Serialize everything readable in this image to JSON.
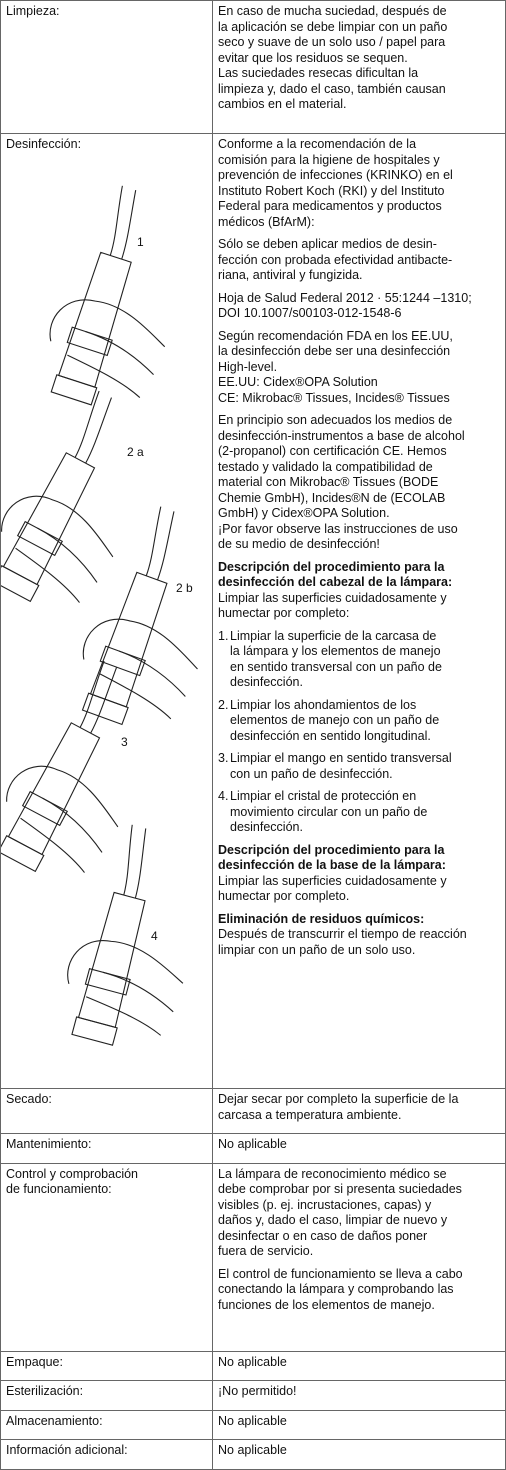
{
  "table": {
    "rows": [
      {
        "label": "Limpieza:",
        "blocks": [
          {
            "lines": [
              "En caso de mucha suciedad, después de",
              "la aplicación se debe limpiar con un paño",
              "seco y suave de un solo uso / papel para",
              "evitar que los residuos se sequen.",
              "Las suciedades resecas dificultan la",
              "limpieza y, dado el caso, también causan",
              "cambios en el material."
            ]
          }
        ]
      },
      {
        "label": "Desinfección:",
        "figures": [
          "1",
          "2 a",
          "2 b",
          "3",
          "4"
        ],
        "blocks": [
          {
            "lines": [
              "Conforme a la recomendación de la",
              "comisión para la higiene de hospitales y",
              "prevención de infecciones (KRINKO) en el",
              "Instituto Robert Koch (RKI) y del Instituto",
              "Federal para medicamentos y productos",
              "médicos (BfArM):"
            ]
          },
          {
            "lines": [
              "Sólo se deben aplicar medios de desin-",
              "fección con probada efectividad antibacte-",
              "riana, antiviral y fungizida."
            ]
          },
          {
            "lines": [
              "Hoja de Salud Federal 2012 · 55:1244 –1310;",
              "DOI 10.1007/s00103-012-1548-6"
            ]
          },
          {
            "lines": [
              "Según recomendación FDA en los EE.UU,",
              "la desinfección debe ser una desinfección",
              "High-level.",
              "EE.UU: Cidex®OPA Solution",
              "CE: Mikrobac® Tissues, Incides® Tissues"
            ]
          },
          {
            "lines": [
              "En principio son adecuados los medios de",
              "desinfección-instrumentos a base de alcohol",
              "(2-propanol) con certificación CE. Hemos",
              "testado y validado la compatibilidad de",
              "material con Mikrobac® Tissues (BODE",
              "Chemie GmbH), Incides®N de (ECOLAB",
              "GmbH) y Cidex®OPA Solution.",
              "¡Por favor observe las instrucciones de uso",
              "de su medio de desinfección!"
            ]
          },
          {
            "heading": [
              "Descripción del procedimiento para la",
              "desinfección del cabezal de la lámpara:"
            ],
            "lines": [
              "Limpiar las superficies cuidadosamente y",
              "humectar por completo:"
            ]
          },
          {
            "marker": "1.",
            "lines": [
              "Limpiar la superficie de la carcasa de",
              "la lámpara y los elementos de manejo",
              "en sentido transversal con un paño de",
              "desinfección."
            ]
          },
          {
            "marker": "2.",
            "lines": [
              "Limpiar los ahondamientos de los",
              "elementos de manejo con un paño de",
              "desinfección en sentido longitudinal."
            ]
          },
          {
            "marker": "3.",
            "lines": [
              "Limpiar el mango en sentido transversal",
              "con un paño de desinfección."
            ]
          },
          {
            "marker": "4.",
            "lines": [
              "Limpiar el cristal de protección en",
              "movimiento circular con un paño de",
              "desinfección."
            ]
          },
          {
            "heading": [
              "Descripción del procedimiento para la",
              "desinfección de la base de la lámpara:"
            ],
            "lines": [
              "Limpiar las superficies cuidadosamente y",
              "humectar por completo."
            ]
          },
          {
            "heading": [
              "Eliminación de residuos químicos:"
            ],
            "lines": [
              "Después de transcurrir el tiempo de reacción",
              "limpiar con un paño de un solo uso."
            ]
          }
        ]
      },
      {
        "label": "Secado:",
        "blocks": [
          {
            "lines": [
              "Dejar secar por completo la superficie de la",
              "carcasa a temperatura ambiente."
            ]
          }
        ]
      },
      {
        "label": "Mantenimiento:",
        "blocks": [
          {
            "lines": [
              "No aplicable"
            ]
          }
        ]
      },
      {
        "label": "Control y comprobación\nde funcionamiento:",
        "blocks": [
          {
            "lines": [
              "La lámpara de reconocimiento médico se",
              "debe comprobar por si presenta suciedades",
              "visibles (p. ej. incrustaciones, capas) y",
              "daños y, dado el caso, limpiar de nuevo y",
              "desinfectar o en caso de daños poner",
              "fuera de servicio."
            ]
          },
          {
            "lines": [
              "El control de funcionamiento se lleva a cabo",
              "conectando la lámpara y comprobando las",
              "funciones de los elementos de manejo."
            ]
          }
        ]
      },
      {
        "label": "Empaque:",
        "blocks": [
          {
            "lines": [
              "No aplicable"
            ]
          }
        ]
      },
      {
        "label": "Esterilización:",
        "blocks": [
          {
            "lines": [
              "¡No permitido!"
            ]
          }
        ]
      },
      {
        "label": "Almacenamiento:",
        "blocks": [
          {
            "lines": [
              "No aplicable"
            ]
          }
        ]
      },
      {
        "label": "Información adicional:",
        "blocks": [
          {
            "lines": [
              "No aplicable"
            ]
          }
        ]
      }
    ]
  }
}
